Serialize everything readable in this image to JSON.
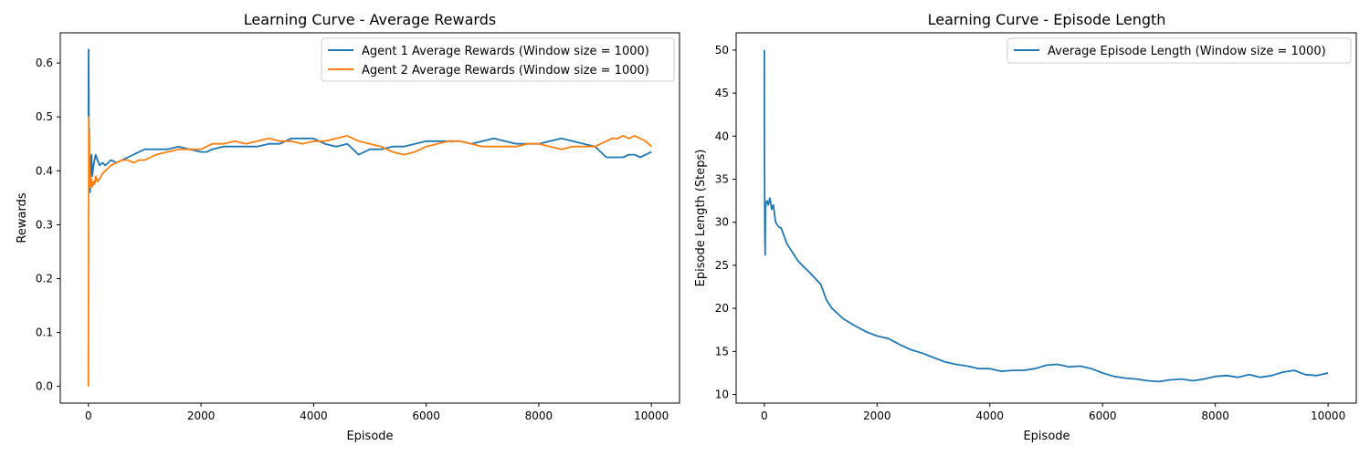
{
  "chart_data": [
    {
      "type": "line",
      "title": "Learning Curve - Average Rewards",
      "xlabel": "Episode",
      "ylabel": "Rewards",
      "xlim": [
        -500,
        10500
      ],
      "ylim": [
        -0.031,
        0.656
      ],
      "xticks": [
        0,
        2000,
        4000,
        6000,
        8000,
        10000
      ],
      "xtick_labels": [
        "0",
        "2000",
        "4000",
        "6000",
        "8000",
        "10000"
      ],
      "yticks": [
        0.0,
        0.1,
        0.2,
        0.3,
        0.4,
        0.5,
        0.6
      ],
      "ytick_labels": [
        "0.0",
        "0.1",
        "0.2",
        "0.3",
        "0.4",
        "0.5",
        "0.6"
      ],
      "grid": false,
      "legend_position": "top-right",
      "series": [
        {
          "name": "Agent 1 Average Rewards (Window size = 1000)",
          "color": "#1f77b4",
          "x": [
            0,
            3,
            6,
            10,
            15,
            20,
            30,
            40,
            55,
            70,
            90,
            110,
            130,
            160,
            200,
            250,
            300,
            400,
            500,
            600,
            700,
            800,
            900,
            1000,
            1200,
            1400,
            1600,
            1800,
            2000,
            2100,
            2200,
            2400,
            2600,
            2800,
            3000,
            3200,
            3400,
            3600,
            3800,
            4000,
            4200,
            4400,
            4600,
            4800,
            5000,
            5200,
            5400,
            5600,
            5800,
            6000,
            6200,
            6400,
            6600,
            6800,
            7000,
            7200,
            7400,
            7600,
            7800,
            8000,
            8200,
            8400,
            8600,
            8800,
            9000,
            9100,
            9200,
            9300,
            9400,
            9500,
            9600,
            9700,
            9800,
            9900,
            10000
          ],
          "y": [
            0.5,
            0.625,
            0.56,
            0.45,
            0.48,
            0.38,
            0.36,
            0.42,
            0.43,
            0.39,
            0.41,
            0.42,
            0.43,
            0.42,
            0.41,
            0.415,
            0.41,
            0.42,
            0.415,
            0.42,
            0.425,
            0.43,
            0.435,
            0.44,
            0.44,
            0.44,
            0.445,
            0.44,
            0.435,
            0.435,
            0.44,
            0.445,
            0.445,
            0.445,
            0.445,
            0.45,
            0.45,
            0.46,
            0.46,
            0.46,
            0.45,
            0.445,
            0.45,
            0.43,
            0.44,
            0.44,
            0.445,
            0.445,
            0.45,
            0.455,
            0.455,
            0.455,
            0.455,
            0.45,
            0.455,
            0.46,
            0.455,
            0.45,
            0.45,
            0.45,
            0.455,
            0.46,
            0.455,
            0.45,
            0.445,
            0.435,
            0.425,
            0.425,
            0.425,
            0.425,
            0.43,
            0.43,
            0.425,
            0.43,
            0.435
          ]
        },
        {
          "name": "Agent 2 Average Rewards (Window size = 1000)",
          "color": "#ff7f0e",
          "x": [
            0,
            3,
            6,
            10,
            15,
            20,
            30,
            40,
            55,
            70,
            90,
            110,
            130,
            160,
            200,
            250,
            300,
            400,
            500,
            600,
            700,
            800,
            900,
            1000,
            1200,
            1400,
            1600,
            1800,
            2000,
            2100,
            2200,
            2400,
            2600,
            2800,
            3000,
            3200,
            3400,
            3600,
            3800,
            4000,
            4200,
            4400,
            4600,
            4800,
            5000,
            5200,
            5400,
            5600,
            5800,
            6000,
            6200,
            6400,
            6600,
            6800,
            7000,
            7200,
            7400,
            7600,
            7800,
            8000,
            8200,
            8400,
            8600,
            8800,
            9000,
            9100,
            9200,
            9300,
            9400,
            9500,
            9600,
            9700,
            9800,
            9900,
            10000
          ],
          "y": [
            0.0,
            0.25,
            0.5,
            0.38,
            0.47,
            0.4,
            0.37,
            0.39,
            0.38,
            0.37,
            0.38,
            0.375,
            0.39,
            0.38,
            0.385,
            0.395,
            0.4,
            0.41,
            0.415,
            0.42,
            0.42,
            0.415,
            0.42,
            0.42,
            0.43,
            0.435,
            0.44,
            0.44,
            0.44,
            0.445,
            0.45,
            0.45,
            0.455,
            0.45,
            0.455,
            0.46,
            0.455,
            0.455,
            0.45,
            0.455,
            0.455,
            0.46,
            0.465,
            0.455,
            0.45,
            0.445,
            0.435,
            0.43,
            0.435,
            0.445,
            0.45,
            0.455,
            0.455,
            0.45,
            0.445,
            0.445,
            0.445,
            0.445,
            0.45,
            0.45,
            0.445,
            0.44,
            0.445,
            0.445,
            0.445,
            0.45,
            0.455,
            0.46,
            0.46,
            0.465,
            0.46,
            0.465,
            0.46,
            0.455,
            0.445
          ]
        }
      ]
    },
    {
      "type": "line",
      "title": "Learning Curve - Episode Length",
      "xlabel": "Episode",
      "ylabel": "Episode Length (Steps)",
      "xlim": [
        -500,
        10500
      ],
      "ylim": [
        9.0,
        52.0
      ],
      "xticks": [
        0,
        2000,
        4000,
        6000,
        8000,
        10000
      ],
      "xtick_labels": [
        "0",
        "2000",
        "4000",
        "6000",
        "8000",
        "10000"
      ],
      "yticks": [
        10,
        15,
        20,
        25,
        30,
        35,
        40,
        45,
        50
      ],
      "ytick_labels": [
        "10",
        "15",
        "20",
        "25",
        "30",
        "35",
        "40",
        "45",
        "50"
      ],
      "grid": false,
      "legend_position": "top-right",
      "series": [
        {
          "name": "Average Episode Length (Window size = 1000)",
          "color": "#1f77b4",
          "x": [
            0,
            3,
            6,
            10,
            15,
            20,
            30,
            50,
            70,
            100,
            130,
            160,
            200,
            250,
            300,
            400,
            500,
            600,
            700,
            800,
            900,
            1000,
            1100,
            1200,
            1400,
            1600,
            1800,
            2000,
            2200,
            2400,
            2600,
            2800,
            3000,
            3200,
            3400,
            3600,
            3800,
            4000,
            4200,
            4400,
            4600,
            4800,
            5000,
            5200,
            5400,
            5600,
            5800,
            6000,
            6200,
            6400,
            6600,
            6800,
            7000,
            7200,
            7400,
            7600,
            7800,
            8000,
            8200,
            8400,
            8600,
            8800,
            9000,
            9200,
            9400,
            9600,
            9800,
            10000
          ],
          "y": [
            50.0,
            40.0,
            33.0,
            28.0,
            26.2,
            31.5,
            32.3,
            32.5,
            32.0,
            32.8,
            31.5,
            32.0,
            30.0,
            29.5,
            29.3,
            27.5,
            26.5,
            25.5,
            24.8,
            24.2,
            23.5,
            22.8,
            21.0,
            20.0,
            18.8,
            18.0,
            17.3,
            16.8,
            16.5,
            15.8,
            15.2,
            14.8,
            14.3,
            13.8,
            13.5,
            13.3,
            13.0,
            13.0,
            12.7,
            12.8,
            12.8,
            13.0,
            13.4,
            13.5,
            13.2,
            13.3,
            13.0,
            12.5,
            12.1,
            11.9,
            11.8,
            11.6,
            11.5,
            11.7,
            11.8,
            11.6,
            11.8,
            12.1,
            12.2,
            12.0,
            12.3,
            12.0,
            12.2,
            12.6,
            12.8,
            12.3,
            12.2,
            12.5
          ]
        }
      ]
    }
  ]
}
